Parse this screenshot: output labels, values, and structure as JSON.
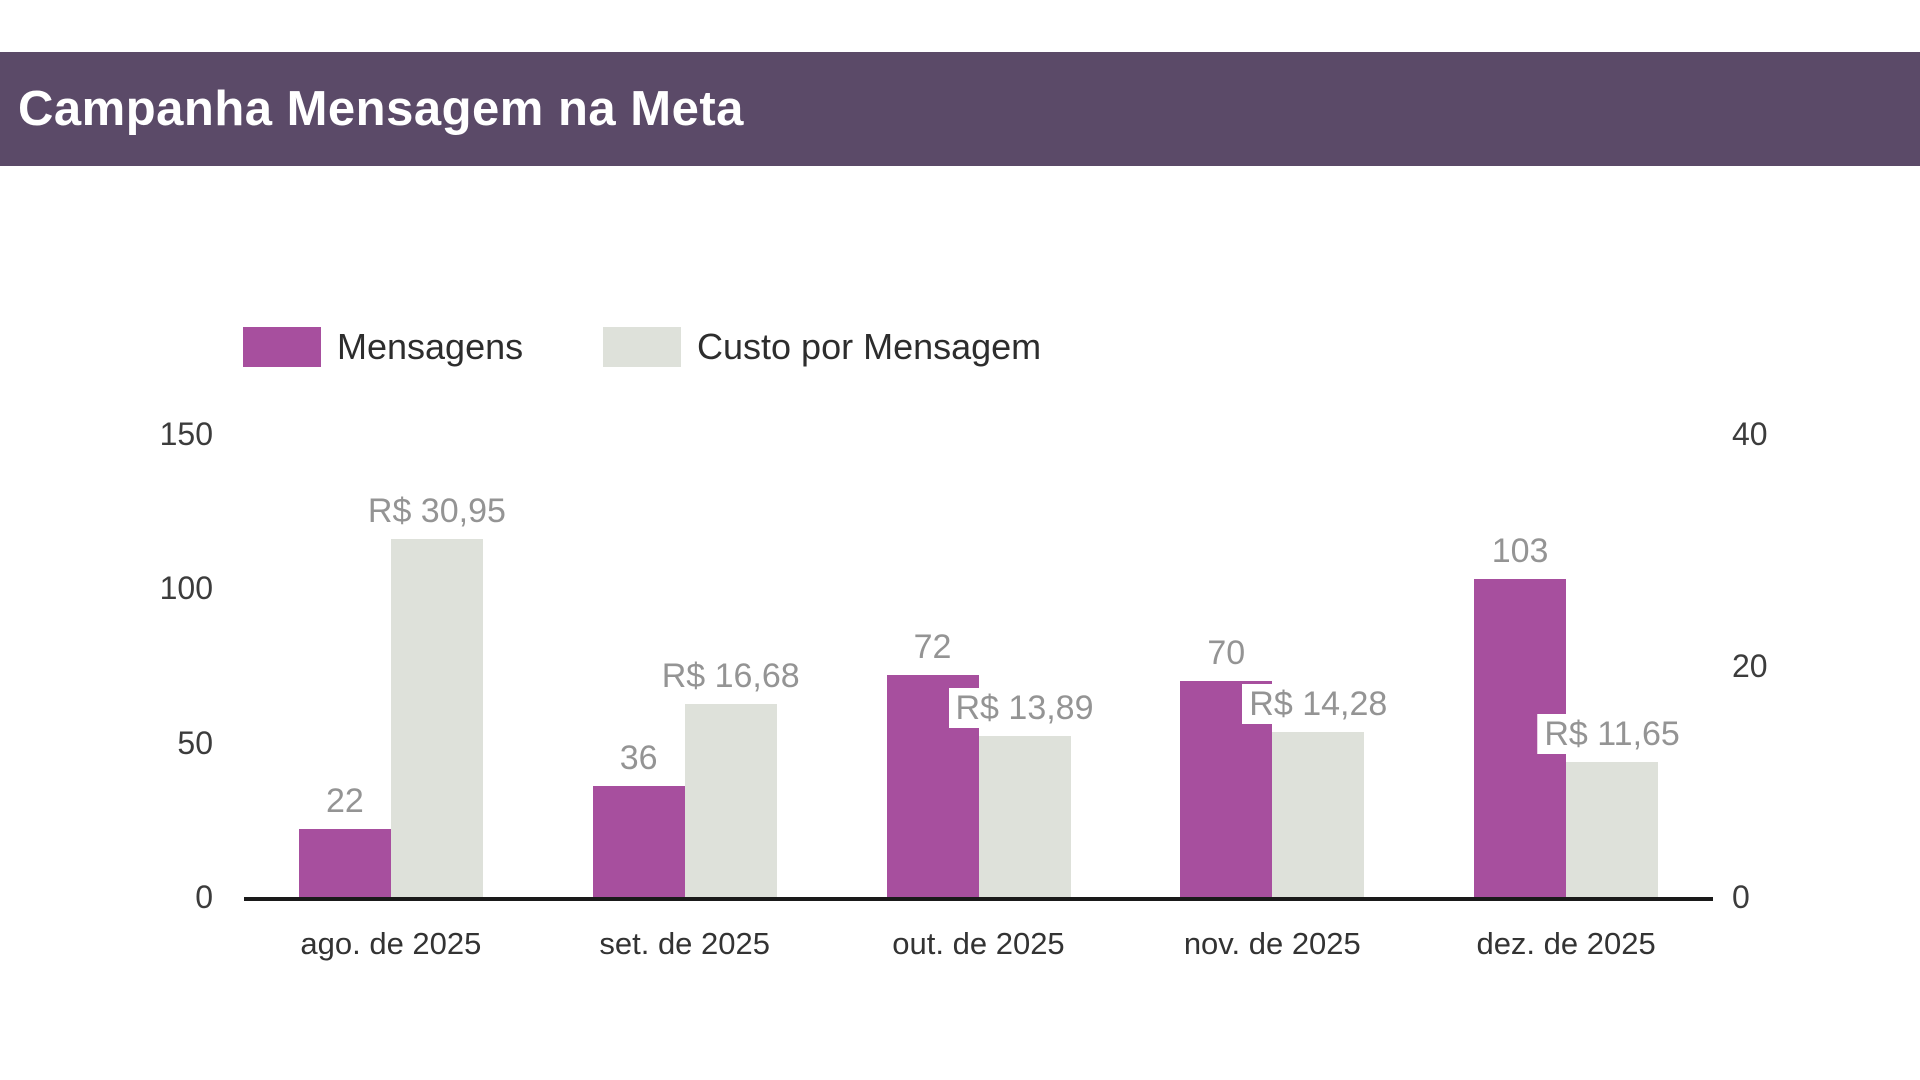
{
  "header": {
    "title": "Campanha Mensagem na Meta"
  },
  "chart_data": {
    "type": "bar",
    "title": "Campanha Mensagem na Meta",
    "categories": [
      "ago. de 2025",
      "set. de 2025",
      "out. de 2025",
      "nov. de 2025",
      "dez. de 2025"
    ],
    "series": [
      {
        "name": "Mensagens",
        "axis": "left",
        "color": "#a74f9e",
        "values": [
          22,
          36,
          72,
          70,
          103
        ],
        "labels": [
          "22",
          "36",
          "72",
          "70",
          "103"
        ]
      },
      {
        "name": "Custo por Mensagem",
        "axis": "right",
        "color": "#dee1da",
        "values": [
          30.95,
          16.68,
          13.89,
          14.28,
          11.65
        ],
        "labels": [
          "R$ 30,95",
          "R$ 16,68",
          "R$ 13,89",
          "R$ 14,28",
          "R$ 11,65"
        ]
      }
    ],
    "left_axis": {
      "max": 150,
      "ticks": [
        0,
        50,
        100,
        150
      ],
      "tick_labels": [
        "0",
        "50",
        "100",
        "150"
      ]
    },
    "right_axis": {
      "max": 40,
      "ticks": [
        0,
        20,
        40
      ],
      "tick_labels": [
        "0",
        "20",
        "40"
      ]
    },
    "legend_position": "top",
    "grid": false,
    "xlabel": "",
    "ylabel": ""
  },
  "colors": {
    "header_bg": "#5b4a68",
    "header_text": "#ffffff",
    "bar_mensagens": "#a74f9e",
    "bar_custo": "#dee1da",
    "data_label": "#949494",
    "axis_text": "#3c3c3c",
    "axis_line": "#1a1a1a",
    "background": "#ffffff"
  }
}
